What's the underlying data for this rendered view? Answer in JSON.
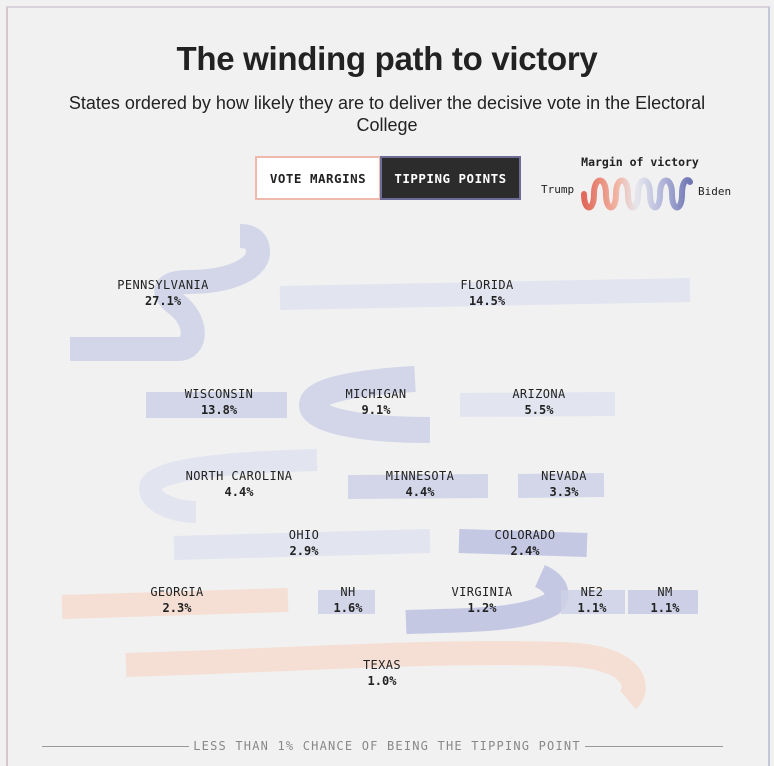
{
  "header": {
    "title": "The winding path to victory",
    "subtitle": "States ordered by how likely they are to deliver the decisive vote in the Electoral College"
  },
  "toggle": {
    "margins_label": "VOTE MARGINS",
    "tipping_label": "TIPPING POINTS",
    "active": "tipping_points"
  },
  "legend": {
    "title": "Margin of victory",
    "left_label": "Trump",
    "right_label": "Biden",
    "colors": [
      "#e0695a",
      "#f2b2a0",
      "#e6e6ee",
      "#b7bbdc",
      "#6f76b4"
    ]
  },
  "footer": {
    "note": "LESS THAN 1% CHANCE OF BEING THE TIPPING POINT"
  },
  "chart_data": {
    "type": "table",
    "series_label": "Tipping-point chance",
    "states": [
      {
        "name": "PENNSYLVANIA",
        "value": 27.1,
        "label": "27.1%",
        "lean": "biden",
        "color": "#cdd1e6"
      },
      {
        "name": "FLORIDA",
        "value": 14.5,
        "label": "14.5%",
        "lean": "biden",
        "color": "#dfe2f0"
      },
      {
        "name": "WISCONSIN",
        "value": 13.8,
        "label": "13.8%",
        "lean": "biden",
        "color": "#cdd1e6"
      },
      {
        "name": "MICHIGAN",
        "value": 9.1,
        "label": "9.1%",
        "lean": "biden",
        "color": "#cdd1e6"
      },
      {
        "name": "ARIZONA",
        "value": 5.5,
        "label": "5.5%",
        "lean": "biden",
        "color": "#dfe2f0"
      },
      {
        "name": "NORTH CAROLINA",
        "value": 4.4,
        "label": "4.4%",
        "lean": "biden",
        "color": "#dfe2f0"
      },
      {
        "name": "MINNESOTA",
        "value": 4.4,
        "label": "4.4%",
        "lean": "biden",
        "color": "#cdd1e6"
      },
      {
        "name": "NEVADA",
        "value": 3.3,
        "label": "3.3%",
        "lean": "biden",
        "color": "#cdd1e6"
      },
      {
        "name": "OHIO",
        "value": 2.9,
        "label": "2.9%",
        "lean": "biden",
        "color": "#dfe2f0"
      },
      {
        "name": "COLORADO",
        "value": 2.4,
        "label": "2.4%",
        "lean": "biden",
        "color": "#bcc1e0"
      },
      {
        "name": "GEORGIA",
        "value": 2.3,
        "label": "2.3%",
        "lean": "trump",
        "color": "#f6dccf"
      },
      {
        "name": "NH",
        "value": 1.6,
        "label": "1.6%",
        "lean": "biden",
        "color": "#cdd1e6"
      },
      {
        "name": "VIRGINIA",
        "value": 1.2,
        "label": "1.2%",
        "lean": "biden",
        "color": "#bcc1e0"
      },
      {
        "name": "NE2",
        "value": 1.1,
        "label": "1.1%",
        "lean": "biden",
        "color": "#cdd1e6"
      },
      {
        "name": "NM",
        "value": 1.1,
        "label": "1.1%",
        "lean": "biden",
        "color": "#c5c9e3"
      },
      {
        "name": "TEXAS",
        "value": 1.0,
        "label": "1.0%",
        "lean": "trump",
        "color": "#f6dccf"
      }
    ]
  }
}
